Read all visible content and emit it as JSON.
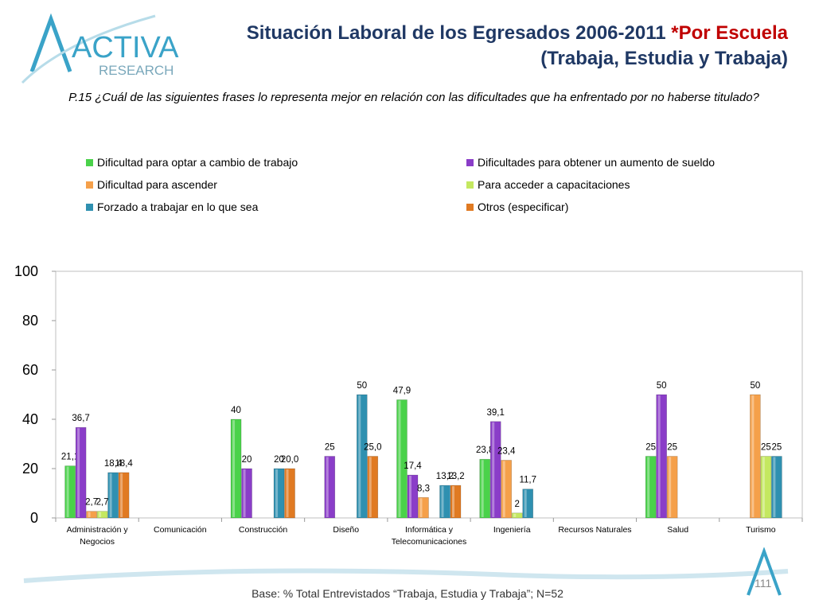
{
  "header": {
    "logo_text_main": "ACTIVA",
    "logo_text_sub": "RESEARCH",
    "title_line1_main": "Situación Laboral de los Egresados 2006-2011 ",
    "title_line1_accent": "*Por Escuela",
    "title_line2": "(Trabaja, Estudia y Trabaja)"
  },
  "question": "P.15 ¿Cuál de las siguientes frases lo representa mejor en relación con las dificultades que ha enfrentado por no haberse titulado?",
  "footer": {
    "base": "Base: % Total Entrevistados “Trabaja, Estudia y Trabaja”; N=52",
    "page": "111"
  },
  "chart_data": {
    "type": "bar",
    "ylim": [
      0,
      100
    ],
    "yticks": [
      "0",
      "20",
      "40",
      "60",
      "80",
      "100"
    ],
    "categories": [
      "Administración y Negocios",
      "Comunicación",
      "Construcción",
      "Diseño",
      "Informática y Telecomunicaciones",
      "Ingeniería",
      "Recursos Naturales",
      "Salud",
      "Turismo"
    ],
    "series": [
      {
        "name": "Dificultad para optar a cambio de trabajo",
        "color": "#4ad24a",
        "values": [
          21.1,
          null,
          40,
          null,
          47.9,
          23.8,
          null,
          25,
          null
        ],
        "labels": [
          "21,1",
          "",
          "40",
          "",
          "47,9",
          "23,8",
          "",
          "25",
          ""
        ]
      },
      {
        "name": "Dificultades para obtener un aumento de sueldo",
        "color": "#8a3dc8",
        "values": [
          36.7,
          null,
          20,
          25,
          17.4,
          39.1,
          null,
          50,
          null
        ],
        "labels": [
          "36,7",
          "",
          "20",
          "25",
          "17,4",
          "39,1",
          "",
          "50",
          ""
        ]
      },
      {
        "name": "Dificultad para ascender",
        "color": "#f5a04a",
        "values": [
          2.7,
          null,
          null,
          null,
          8.3,
          23.4,
          null,
          25,
          50
        ],
        "labels": [
          "2,7",
          "",
          "",
          "",
          "8,3",
          "23,4",
          "",
          "25",
          "50"
        ]
      },
      {
        "name": "Para acceder a capacitaciones",
        "color": "#c4e860",
        "values": [
          2.7,
          null,
          null,
          null,
          null,
          2,
          null,
          null,
          25
        ],
        "labels": [
          "2,7",
          "",
          "",
          "",
          "",
          "2",
          "",
          "",
          "25"
        ]
      },
      {
        "name": "Forzado a trabajar en lo que sea",
        "color": "#2f90b0",
        "values": [
          18.4,
          null,
          20,
          50,
          13.2,
          11.7,
          null,
          null,
          25
        ],
        "labels": [
          "18,4",
          "",
          "20",
          "50",
          "13,2",
          "11,7",
          "",
          "",
          "25"
        ]
      },
      {
        "name": "Otros (especificar)",
        "color": "#e07a22",
        "values": [
          18.4,
          null,
          20.0,
          25.0,
          13.2,
          null,
          null,
          null,
          null
        ],
        "labels": [
          "18,4",
          "",
          "20,0",
          "25,0",
          "13,2",
          "",
          "",
          "",
          ""
        ]
      }
    ],
    "legend": "top-two-columns",
    "grid": false
  }
}
